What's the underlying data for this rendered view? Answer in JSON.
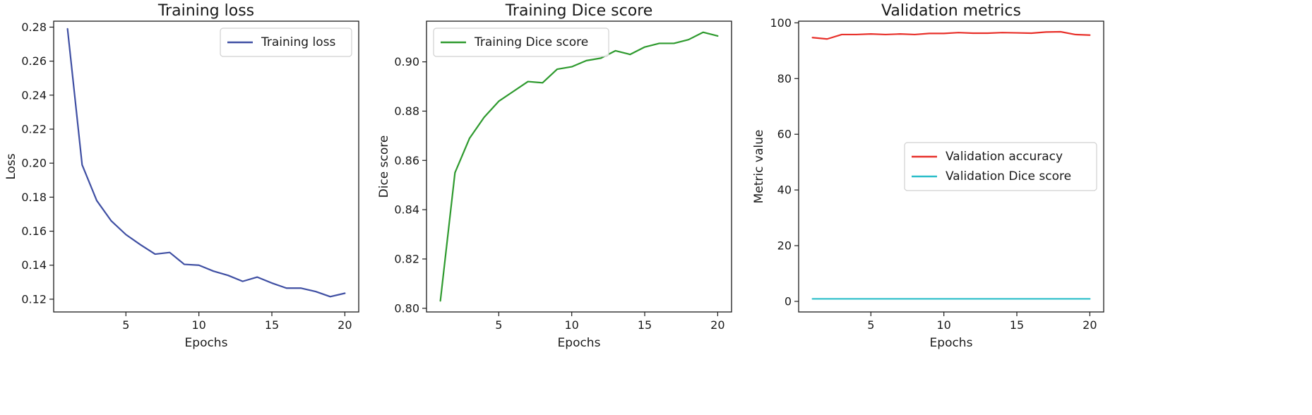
{
  "chart_data": [
    {
      "type": "line",
      "title": "Training loss",
      "xlabel": "Epochs",
      "ylabel": "Loss",
      "xlim": [
        0.05,
        20.95
      ],
      "ylim": [
        0.1125,
        0.2835
      ],
      "xticks": [
        5,
        10,
        15,
        20
      ],
      "yticks": [
        0.12,
        0.14,
        0.16,
        0.18,
        0.2,
        0.22,
        0.24,
        0.26,
        0.28
      ],
      "ytick_labels": [
        "0.12",
        "0.14",
        "0.16",
        "0.18",
        "0.20",
        "0.22",
        "0.24",
        "0.26",
        "0.28"
      ],
      "legend": "upper-right",
      "grid": false,
      "x": [
        1,
        2,
        3,
        4,
        5,
        6,
        7,
        8,
        9,
        10,
        11,
        12,
        13,
        14,
        15,
        16,
        17,
        18,
        19,
        20
      ],
      "series": [
        {
          "name": "Training loss",
          "color": "#3f4fa3",
          "values": [
            0.279,
            0.199,
            0.178,
            0.166,
            0.158,
            0.152,
            0.1465,
            0.1475,
            0.1405,
            0.14,
            0.1365,
            0.134,
            0.1305,
            0.133,
            0.1295,
            0.1265,
            0.1265,
            0.1245,
            0.1215,
            0.1235
          ]
        }
      ]
    },
    {
      "type": "line",
      "title": "Training Dice score",
      "xlabel": "Epochs",
      "ylabel": "Dice score",
      "xlim": [
        0.05,
        20.95
      ],
      "ylim": [
        0.7985,
        0.9165
      ],
      "xticks": [
        5,
        10,
        15,
        20
      ],
      "yticks": [
        0.8,
        0.82,
        0.84,
        0.86,
        0.88,
        0.9
      ],
      "ytick_labels": [
        "0.80",
        "0.82",
        "0.84",
        "0.86",
        "0.88",
        "0.90"
      ],
      "legend": "upper-left",
      "grid": false,
      "x": [
        1,
        2,
        3,
        4,
        5,
        6,
        7,
        8,
        9,
        10,
        11,
        12,
        13,
        14,
        15,
        16,
        17,
        18,
        19,
        20
      ],
      "series": [
        {
          "name": "Training Dice score",
          "color": "#2e9a2e",
          "values": [
            0.803,
            0.855,
            0.869,
            0.8775,
            0.884,
            0.888,
            0.892,
            0.8915,
            0.897,
            0.898,
            0.9005,
            0.9015,
            0.9045,
            0.903,
            0.906,
            0.9075,
            0.9075,
            0.909,
            0.912,
            0.9105
          ]
        }
      ]
    },
    {
      "type": "line",
      "title": "Validation metrics",
      "xlabel": "Epochs",
      "ylabel": "Metric value",
      "xlim": [
        0.05,
        20.95
      ],
      "ylim": [
        -3.8,
        100.6
      ],
      "xticks": [
        5,
        10,
        15,
        20
      ],
      "yticks": [
        0,
        20,
        40,
        60,
        80,
        100
      ],
      "ytick_labels": [
        "0",
        "20",
        "40",
        "60",
        "80",
        "100"
      ],
      "legend": "center-right",
      "grid": false,
      "x": [
        1,
        2,
        3,
        4,
        5,
        6,
        7,
        8,
        9,
        10,
        11,
        12,
        13,
        14,
        15,
        16,
        17,
        18,
        19,
        20
      ],
      "series": [
        {
          "name": "Validation accuracy",
          "color": "#e8302a",
          "values": [
            94.7,
            94.2,
            95.8,
            95.8,
            96.0,
            95.8,
            96.0,
            95.8,
            96.2,
            96.2,
            96.5,
            96.3,
            96.3,
            96.5,
            96.4,
            96.3,
            96.7,
            96.8,
            95.8,
            95.6
          ]
        },
        {
          "name": "Validation Dice score",
          "color": "#2bbec9",
          "values": [
            0.9,
            0.9,
            0.9,
            0.9,
            0.9,
            0.9,
            0.9,
            0.9,
            0.9,
            0.9,
            0.9,
            0.9,
            0.9,
            0.9,
            0.9,
            0.9,
            0.9,
            0.9,
            0.9,
            0.9
          ]
        }
      ]
    }
  ]
}
